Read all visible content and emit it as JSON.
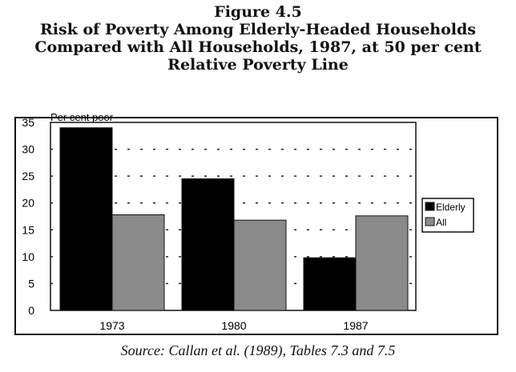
{
  "header": {
    "line1": "Figure 4.5",
    "line2": "Risk of Poverty Among Elderly-Headed Households",
    "line3": "Compared with All Households, 1987, at 50 per cent",
    "line4": "Relative Poverty Line"
  },
  "source": "Source: Callan et al. (1989), Tables 7.3 and 7.5",
  "chart_data": {
    "type": "bar",
    "title": "Risk of Poverty Among Elderly-Headed Households Compared with All Households, 1987, at 50 per cent Relative Poverty Line",
    "ylabel": "Per cent poor",
    "xlabel": "",
    "categories": [
      "1973",
      "1980",
      "1987"
    ],
    "series": [
      {
        "name": "Elderly",
        "values": [
          34,
          24.5,
          9.8
        ],
        "color": "#000000"
      },
      {
        "name": "All",
        "values": [
          17.8,
          16.8,
          17.6
        ],
        "color": "#8a8a8a"
      }
    ],
    "ylim": [
      0,
      35
    ],
    "yticks": [
      0,
      5,
      10,
      15,
      20,
      25,
      30,
      35
    ],
    "grid": "dashed horizontal",
    "legend": "right"
  }
}
